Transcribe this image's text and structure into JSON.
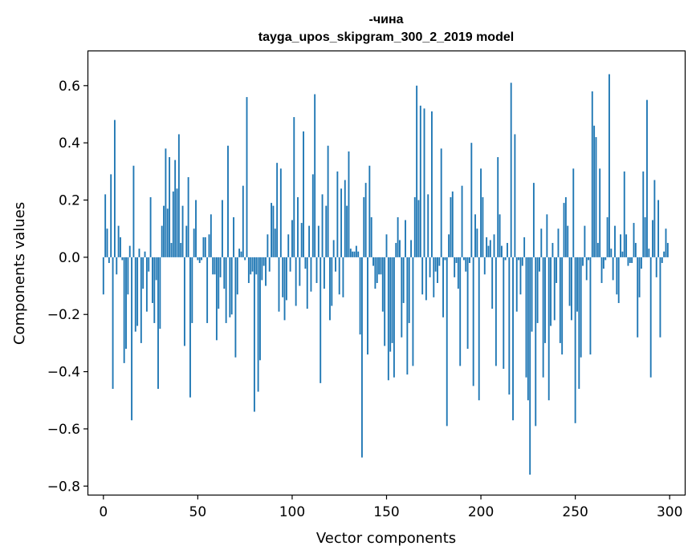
{
  "chart_data": {
    "type": "bar",
    "title_lines": [
      "-чина",
      "tayga_upos_skipgram_300_2_2019 model"
    ],
    "xlabel": "Vector components",
    "ylabel": "Components values",
    "xlim": [
      -8,
      308
    ],
    "ylim": [
      -0.83,
      0.72
    ],
    "x_ticks": [
      0,
      50,
      100,
      150,
      200,
      250,
      300
    ],
    "x_tick_labels": [
      "0",
      "50",
      "100",
      "150",
      "200",
      "250",
      "300"
    ],
    "y_ticks": [
      -0.8,
      -0.6,
      -0.4,
      -0.2,
      0.0,
      0.2,
      0.4,
      0.6
    ],
    "y_tick_labels": [
      "−0.8",
      "−0.6",
      "−0.4",
      "−0.2",
      "0.0",
      "0.2",
      "0.4",
      "0.6"
    ],
    "color": "#1f77b4",
    "grid": false,
    "values": [
      -0.13,
      0.22,
      0.1,
      -0.02,
      0.29,
      -0.46,
      0.48,
      -0.06,
      0.11,
      0.07,
      -0.01,
      -0.37,
      -0.32,
      -0.13,
      0.04,
      -0.57,
      0.32,
      -0.26,
      -0.24,
      0.03,
      -0.3,
      -0.11,
      0.02,
      -0.19,
      -0.05,
      0.21,
      -0.16,
      -0.23,
      -0.08,
      -0.46,
      -0.25,
      0.11,
      0.18,
      0.38,
      0.17,
      0.35,
      0.05,
      0.23,
      0.34,
      0.24,
      0.43,
      0.05,
      0.18,
      -0.31,
      0.11,
      0.28,
      -0.49,
      -0.23,
      0.1,
      0.2,
      -0.01,
      -0.02,
      -0.01,
      0.07,
      0.07,
      -0.23,
      0.08,
      0.15,
      -0.06,
      -0.06,
      -0.29,
      -0.18,
      -0.07,
      0.2,
      -0.11,
      -0.23,
      0.39,
      -0.21,
      -0.2,
      0.14,
      -0.35,
      -0.13,
      0.03,
      0.02,
      0.25,
      -0.01,
      0.56,
      -0.09,
      -0.06,
      -0.05,
      -0.54,
      -0.06,
      -0.47,
      -0.36,
      -0.08,
      -0.03,
      -0.1,
      0.08,
      -0.05,
      0.19,
      0.18,
      0.1,
      0.33,
      -0.19,
      0.31,
      -0.14,
      -0.22,
      -0.15,
      0.08,
      -0.05,
      0.13,
      0.49,
      -0.17,
      0.21,
      -0.1,
      0.12,
      0.44,
      -0.04,
      -0.18,
      0.11,
      -0.12,
      0.29,
      0.57,
      -0.09,
      0.11,
      -0.44,
      0.22,
      -0.11,
      0.18,
      0.39,
      -0.22,
      -0.17,
      0.06,
      -0.05,
      0.3,
      -0.13,
      0.24,
      -0.14,
      0.27,
      0.18,
      0.37,
      0.03,
      0.02,
      0.02,
      0.04,
      0.02,
      -0.27,
      -0.7,
      0.21,
      0.26,
      -0.34,
      0.32,
      0.14,
      -0.03,
      -0.11,
      -0.09,
      -0.06,
      -0.06,
      -0.19,
      -0.31,
      0.08,
      -0.43,
      -0.33,
      -0.3,
      -0.42,
      0.05,
      0.14,
      0.06,
      -0.28,
      -0.16,
      0.13,
      -0.41,
      -0.23,
      0.06,
      -0.38,
      0.21,
      0.6,
      0.2,
      0.53,
      -0.13,
      0.52,
      -0.15,
      0.22,
      -0.07,
      0.51,
      -0.14,
      -0.05,
      -0.09,
      -0.03,
      0.38,
      -0.21,
      -0.01,
      -0.59,
      0.08,
      0.21,
      0.23,
      -0.07,
      -0.02,
      -0.11,
      -0.38,
      0.25,
      -0.01,
      -0.05,
      -0.32,
      -0.02,
      0.4,
      -0.45,
      0.15,
      0.1,
      -0.5,
      0.31,
      0.21,
      -0.06,
      0.07,
      0.04,
      0.06,
      -0.18,
      0.08,
      -0.38,
      0.35,
      0.15,
      0.04,
      -0.39,
      -0.01,
      0.05,
      -0.48,
      0.61,
      -0.57,
      0.43,
      -0.19,
      -0.01,
      -0.13,
      -0.03,
      0.07,
      -0.42,
      -0.5,
      -0.76,
      -0.26,
      0.26,
      -0.59,
      -0.23,
      -0.05,
      0.1,
      -0.42,
      -0.3,
      0.15,
      -0.5,
      -0.24,
      0.05,
      -0.22,
      -0.09,
      0.1,
      -0.3,
      -0.34,
      0.19,
      0.21,
      0.11,
      -0.17,
      -0.22,
      0.31,
      -0.58,
      -0.19,
      -0.46,
      -0.35,
      -0.03,
      0.11,
      -0.08,
      -0.01,
      -0.34,
      0.58,
      0.46,
      0.42,
      0.05,
      0.31,
      -0.09,
      -0.04,
      -0.01,
      0.14,
      0.64,
      0.03,
      -0.08,
      0.11,
      -0.13,
      -0.16,
      0.08,
      0.02,
      0.3,
      0.08,
      -0.03,
      -0.02,
      -0.02,
      0.12,
      0.05,
      -0.28,
      -0.14,
      -0.04,
      0.3,
      0.14,
      0.55,
      0.03,
      -0.42,
      0.13,
      0.27,
      -0.07,
      0.2,
      -0.28,
      -0.02,
      0.02,
      0.1,
      0.05
    ]
  }
}
